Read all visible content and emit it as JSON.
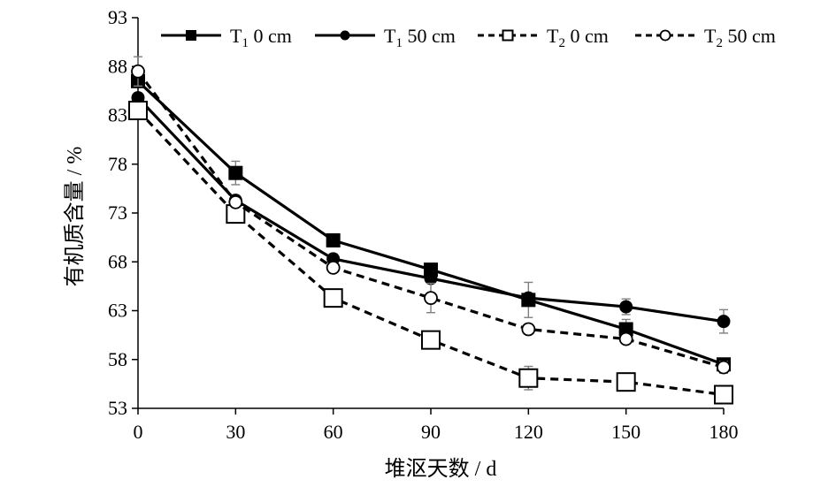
{
  "chart_data": {
    "type": "line",
    "xlabel": "堆沤天数 / d",
    "ylabel": "有机质含量 / %",
    "x": [
      0,
      30,
      60,
      90,
      120,
      150,
      180
    ],
    "xticks": [
      "0",
      "30",
      "60",
      "90",
      "120",
      "150",
      "180"
    ],
    "yticks": [
      "53",
      "58",
      "63",
      "68",
      "73",
      "78",
      "83",
      "88",
      "93"
    ],
    "ylim": [
      53,
      93
    ],
    "xlim": [
      0,
      180
    ],
    "grid": false,
    "legend_position": "top",
    "series": [
      {
        "name": "T1 0 cm",
        "legend_main": "T",
        "legend_sub": "1",
        "legend_rest": " 0 cm",
        "marker": "filled-square",
        "dash": "solid",
        "values": [
          86.5,
          77.1,
          70.2,
          67.2,
          64.1,
          61.1,
          57.5
        ],
        "errors": [
          0.6,
          1.2,
          0.5,
          0.5,
          1.8,
          1.0,
          0.6
        ]
      },
      {
        "name": "T1 50 cm",
        "legend_main": "T",
        "legend_sub": "1",
        "legend_rest": " 50 cm",
        "marker": "filled-circle",
        "dash": "solid",
        "values": [
          84.8,
          74.3,
          68.3,
          66.3,
          64.3,
          63.4,
          61.9
        ],
        "errors": [
          0.5,
          0.5,
          0.5,
          0.4,
          0.4,
          0.8,
          1.2
        ]
      },
      {
        "name": "T2 0 cm",
        "legend_main": "T",
        "legend_sub": "2",
        "legend_rest": " 0 cm",
        "marker": "open-square",
        "dash": "dashed",
        "values": [
          83.5,
          72.9,
          64.3,
          60.0,
          56.1,
          55.7,
          54.4
        ],
        "errors": [
          0.5,
          0.5,
          0.5,
          0.6,
          1.2,
          0.8,
          0.5
        ]
      },
      {
        "name": "T2 50 cm",
        "legend_main": "T",
        "legend_sub": "2",
        "legend_rest": " 50 cm",
        "marker": "open-circle",
        "dash": "dashed",
        "values": [
          87.5,
          74.1,
          67.4,
          64.3,
          61.1,
          60.1,
          57.2
        ],
        "errors": [
          1.5,
          0.5,
          0.5,
          1.5,
          0.5,
          0.5,
          0.6
        ]
      }
    ]
  }
}
